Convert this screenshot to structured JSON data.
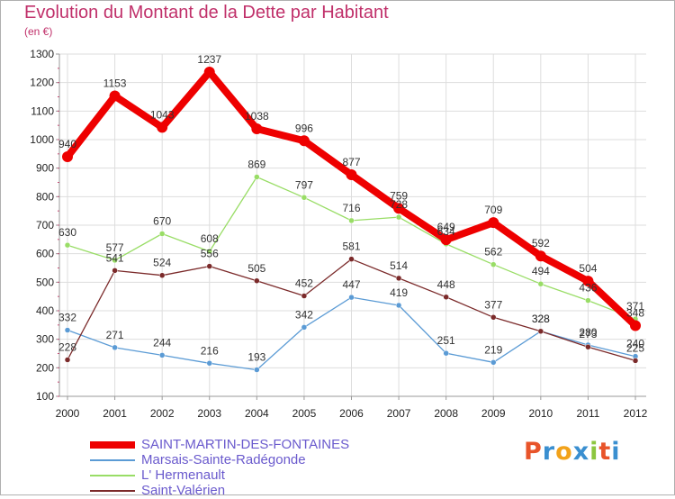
{
  "header": {
    "title": "Evolution du Montant de la Dette par Habitant",
    "unit": "(en €)"
  },
  "logo": {
    "letters": [
      "P",
      "r",
      "o",
      "x",
      "i",
      "t",
      "i"
    ],
    "colors": [
      "#e8542a",
      "#3a8fd0",
      "#f2a21a",
      "#3a8fd0",
      "#8cc63f",
      "#e8542a",
      "#3a8fd0"
    ]
  },
  "chart_data": {
    "type": "line",
    "x": [
      "2000",
      "2001",
      "2002",
      "2003",
      "2004",
      "2005",
      "2006",
      "2007",
      "2008",
      "2009",
      "2010",
      "2011",
      "2012"
    ],
    "ylim": [
      100,
      1300
    ],
    "yticks": [
      100,
      200,
      300,
      400,
      500,
      600,
      700,
      800,
      900,
      1000,
      1100,
      1200,
      1300
    ],
    "grid": true,
    "legend": "bottom-left",
    "series": [
      {
        "name": "SAINT-MARTIN-DES-FONTAINES",
        "color": "#ee0000",
        "width": 8,
        "marker": 6,
        "values": [
          940,
          1153,
          1043,
          1237,
          1038,
          996,
          877,
          759,
          649,
          709,
          592,
          504,
          348
        ],
        "labels": [
          "940",
          "1153",
          "1043",
          "1237",
          "1038",
          "996",
          "877",
          "759",
          "649",
          "709",
          "592",
          "504",
          "348"
        ]
      },
      {
        "name": "Marsais-Sainte-Radégonde",
        "color": "#5b9bd5",
        "width": 1.3,
        "marker": 3,
        "values": [
          332,
          271,
          244,
          216,
          193,
          342,
          447,
          419,
          251,
          219,
          328,
          280,
          240
        ],
        "labels": [
          "332",
          "271",
          "244",
          "216",
          "193",
          "342",
          "447",
          "419",
          "251",
          "219",
          "328",
          "280",
          "240"
        ]
      },
      {
        "name": "L' Hermenault",
        "color": "#99dd66",
        "width": 1.3,
        "marker": 3,
        "values": [
          630,
          577,
          670,
          608,
          869,
          797,
          716,
          728,
          634,
          562,
          494,
          436,
          371
        ],
        "labels": [
          "630",
          "577",
          "670",
          "608",
          "869",
          "797",
          "716",
          "728",
          "634",
          "562",
          "494",
          "436",
          "371"
        ]
      },
      {
        "name": "Saint-Valérien",
        "color": "#7b2a2a",
        "width": 1.3,
        "marker": 3,
        "values": [
          228,
          541,
          524,
          556,
          505,
          452,
          581,
          514,
          448,
          377,
          328,
          273,
          225
        ],
        "labels": [
          "228",
          "541",
          "524",
          "556",
          "505",
          "452",
          "581",
          "514",
          "448",
          "377",
          "328",
          "273",
          "225"
        ]
      }
    ]
  }
}
